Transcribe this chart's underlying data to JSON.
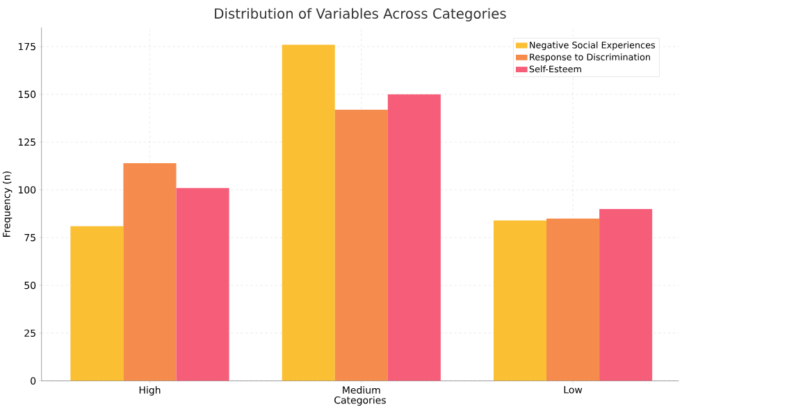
{
  "chart_data": {
    "type": "bar",
    "title": "Distribution of Variables Across Categories",
    "xlabel": "Categories",
    "ylabel": "Frequency (n)",
    "categories": [
      "High",
      "Medium",
      "Low"
    ],
    "series": [
      {
        "name": "Negative Social Experiences",
        "color": "#fbbf33",
        "values": [
          81,
          176,
          84
        ]
      },
      {
        "name": "Response to Discrimination",
        "color": "#f58b4c",
        "values": [
          114,
          142,
          85
        ]
      },
      {
        "name": "Self-Esteem",
        "color": "#f65d79",
        "values": [
          101,
          150,
          90
        ]
      }
    ],
    "ylim": [
      0,
      185
    ],
    "yticks": [
      0,
      25,
      50,
      75,
      100,
      125,
      150,
      175
    ],
    "grid": true,
    "legend": "top right"
  }
}
